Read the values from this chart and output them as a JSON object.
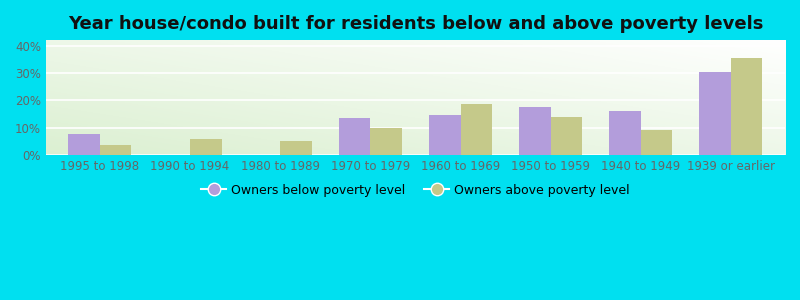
{
  "title": "Year house/condo built for residents below and above poverty levels",
  "categories": [
    "1995 to 1998",
    "1990 to 1994",
    "1980 to 1989",
    "1970 to 1979",
    "1960 to 1969",
    "1950 to 1959",
    "1940 to 1949",
    "1939 or earlier"
  ],
  "below_poverty": [
    7.5,
    0,
    0,
    13.5,
    14.5,
    17.5,
    16.0,
    30.5
  ],
  "above_poverty": [
    3.5,
    6.0,
    5.0,
    10.0,
    18.5,
    14.0,
    9.0,
    35.5
  ],
  "below_color": "#b39ddb",
  "above_color": "#c5c98a",
  "outer_bg": "#00e0f0",
  "ylim": [
    0,
    42
  ],
  "yticks": [
    0,
    10,
    20,
    30,
    40
  ],
  "ytick_labels": [
    "0%",
    "10%",
    "20%",
    "30%",
    "40%"
  ],
  "legend_below": "Owners below poverty level",
  "legend_above": "Owners above poverty level",
  "bar_width": 0.35,
  "title_fontsize": 13,
  "tick_fontsize": 8.5,
  "legend_fontsize": 9,
  "grid_color": "#e0e8e0",
  "tick_color": "#666666"
}
